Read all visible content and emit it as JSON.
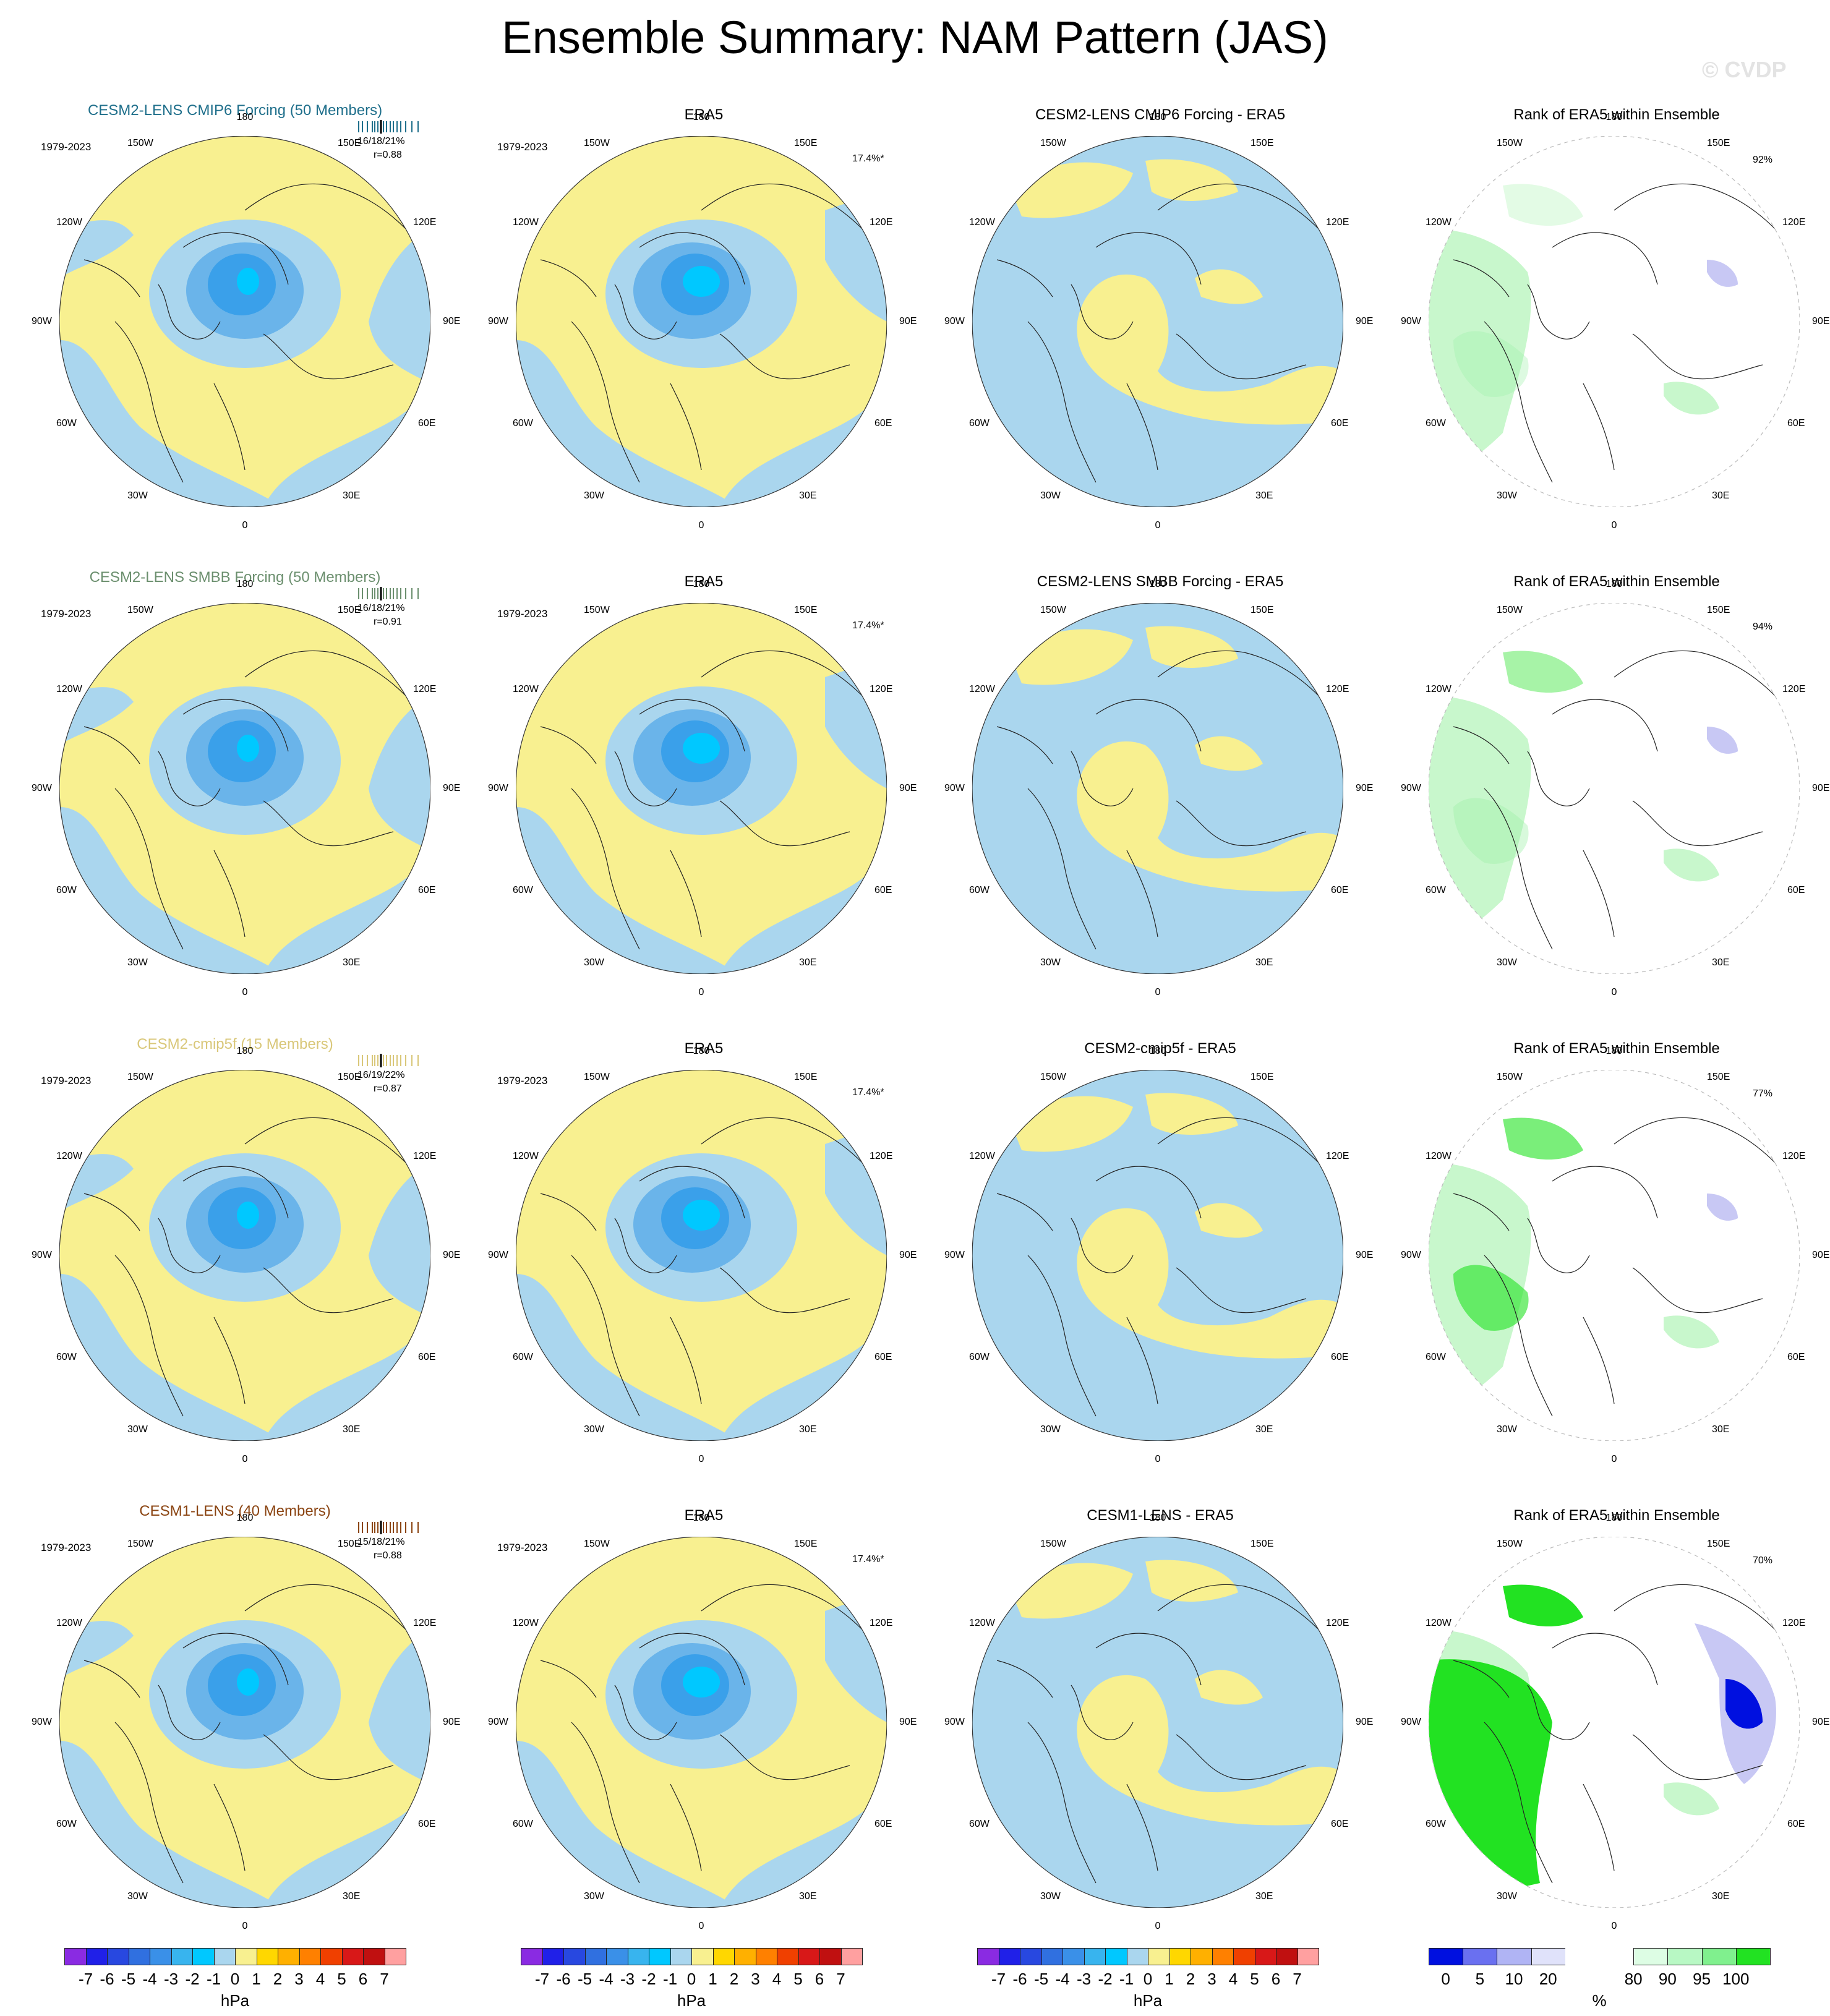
{
  "title": "Ensemble Summary: NAM Pattern (JAS)",
  "watermark": "© CVDP",
  "longitude_labels": {
    "n180": "180",
    "w150": "150W",
    "e150": "150E",
    "w120": "120W",
    "e120": "120E",
    "w90": "90W",
    "e90": "90E",
    "w60": "60W",
    "e60": "60E",
    "w30": "30W",
    "e30": "30E",
    "n0": "0"
  },
  "rows": [
    {
      "model": {
        "title": "CESM2-LENS CMIP6 Forcing (50 Members)",
        "color": "#1f6f8b",
        "period": "1979-2023",
        "stats": "16/18/21%",
        "corr": "r=0.88"
      },
      "obs": {
        "title": "ERA5",
        "period": "1979-2023",
        "pct": "17.4%*"
      },
      "diff": {
        "title": "CESM2-LENS CMIP6 Forcing - ERA5"
      },
      "rank": {
        "title": "Rank of ERA5 within Ensemble",
        "pct": "92%"
      }
    },
    {
      "model": {
        "title": "CESM2-LENS SMBB Forcing (50 Members)",
        "color": "#6b8f6e",
        "period": "1979-2023",
        "stats": "16/18/21%",
        "corr": "r=0.91"
      },
      "obs": {
        "title": "ERA5",
        "period": "1979-2023",
        "pct": "17.4%*"
      },
      "diff": {
        "title": "CESM2-LENS SMBB Forcing - ERA5"
      },
      "rank": {
        "title": "Rank of ERA5 within Ensemble",
        "pct": "94%"
      }
    },
    {
      "model": {
        "title": "CESM2-cmip5f (15 Members)",
        "color": "#d9c779",
        "period": "1979-2023",
        "stats": "16/19/22%",
        "corr": "r=0.87"
      },
      "obs": {
        "title": "ERA5",
        "period": "1979-2023",
        "pct": "17.4%*"
      },
      "diff": {
        "title": "CESM2-cmip5f - ERA5"
      },
      "rank": {
        "title": "Rank of ERA5 within Ensemble",
        "pct": "77%"
      }
    },
    {
      "model": {
        "title": "CESM1-LENS (40 Members)",
        "color": "#8b4513",
        "period": "1979-2023",
        "stats": "15/18/21%",
        "corr": "r=0.88"
      },
      "obs": {
        "title": "ERA5",
        "period": "1979-2023",
        "pct": "17.4%*"
      },
      "diff": {
        "title": "CESM1-LENS - ERA5"
      },
      "rank": {
        "title": "Rank of ERA5 within Ensemble",
        "pct": "70%"
      }
    }
  ],
  "colorbars": {
    "hpa": {
      "unit": "hPa",
      "ticks": [
        "-7",
        "-6",
        "-5",
        "-4",
        "-3",
        "-2",
        "-1",
        "0",
        "1",
        "2",
        "3",
        "4",
        "5",
        "6",
        "7"
      ],
      "colors": [
        "#8a2be2",
        "#2020e8",
        "#2848e0",
        "#3070e0",
        "#3a90e8",
        "#38b4ee",
        "#00c8ff",
        "#aad6ee",
        "#f8f090",
        "#ffd700",
        "#ffb000",
        "#ff8000",
        "#f04000",
        "#d81818",
        "#c01010",
        "#ffa0a0"
      ]
    },
    "rank": {
      "unit": "%",
      "ticks": [
        "0",
        "5",
        "10",
        "20",
        "80",
        "90",
        "95",
        "100"
      ],
      "colors": [
        "#0010e0",
        "#6a70f0",
        "#b0b4f4",
        "#e0e2fa",
        "#ffffff",
        "#ffffff",
        "#ddfde4",
        "#b8f8c4",
        "#80f08e",
        "#22e222"
      ]
    }
  },
  "map_colors": {
    "yellow": "#f8f090",
    "lightblue": "#aad6ee",
    "blue2": "#6ab4ea",
    "blue3": "#00c8ff",
    "green": "#22e222",
    "lightgreen": "#c8f7cc",
    "lavender": "#c8c8f4",
    "deepblue": "#0010e0"
  }
}
